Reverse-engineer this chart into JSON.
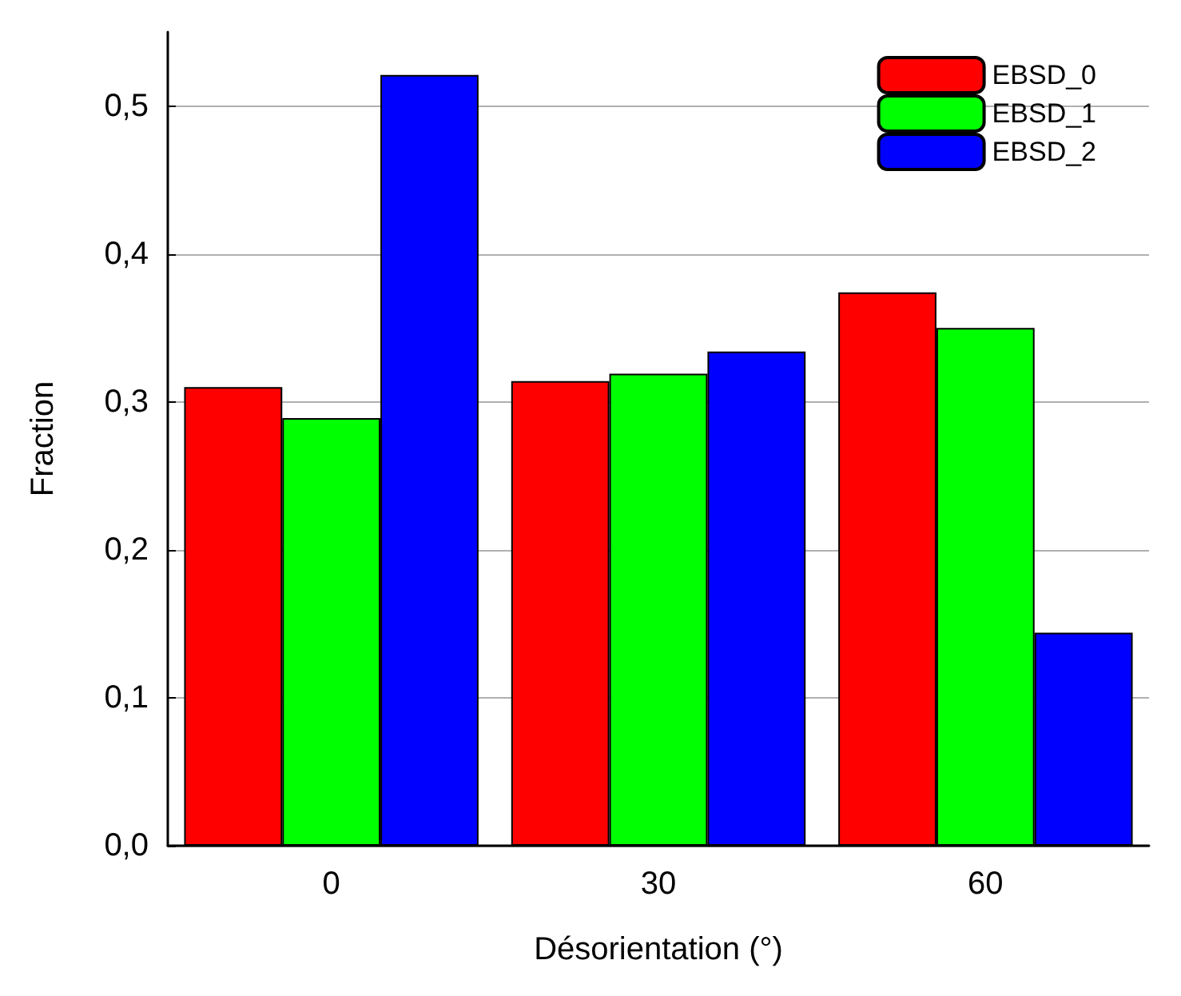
{
  "chart_data": {
    "type": "bar",
    "xlabel": "Désorientation (°)",
    "ylabel": "Fraction",
    "categories": [
      "0",
      "30",
      "60"
    ],
    "series": [
      {
        "name": "EBSD_0",
        "color": "#ff0000",
        "values": [
          0.31,
          0.314,
          0.374
        ]
      },
      {
        "name": "EBSD_1",
        "color": "#00ff00",
        "values": [
          0.289,
          0.319,
          0.35
        ]
      },
      {
        "name": "EBSD_2",
        "color": "#0000ff",
        "values": [
          0.521,
          0.334,
          0.144
        ]
      }
    ],
    "ylim": [
      0,
      0.55
    ],
    "yticks": [
      {
        "value": 0,
        "label": "0,0"
      },
      {
        "value": 0.1,
        "label": "0,1"
      },
      {
        "value": 0.2,
        "label": "0,2"
      },
      {
        "value": 0.3,
        "label": "0,3"
      },
      {
        "value": 0.4,
        "label": "0,4"
      },
      {
        "value": 0.5,
        "label": "0,5"
      }
    ],
    "grid": "y",
    "legend": "top right"
  }
}
